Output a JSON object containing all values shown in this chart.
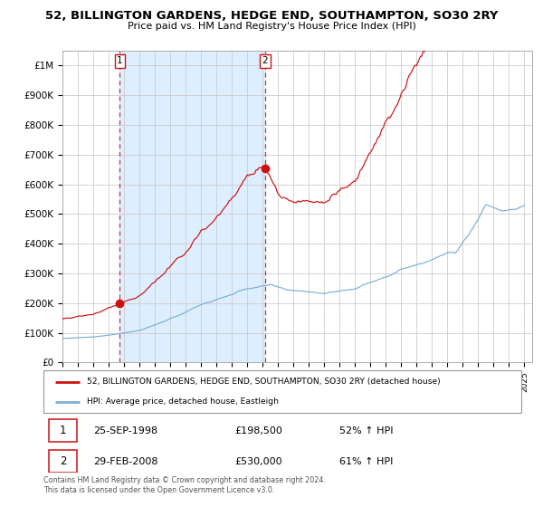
{
  "title": "52, BILLINGTON GARDENS, HEDGE END, SOUTHAMPTON, SO30 2RY",
  "subtitle": "Price paid vs. HM Land Registry's House Price Index (HPI)",
  "x_start_year": 1995,
  "x_end_year": 2025,
  "ylim": [
    0,
    1050000
  ],
  "yticks": [
    0,
    100000,
    200000,
    300000,
    400000,
    500000,
    600000,
    700000,
    800000,
    900000,
    1000000
  ],
  "ytick_labels": [
    "£0",
    "£100K",
    "£200K",
    "£300K",
    "£400K",
    "£500K",
    "£600K",
    "£700K",
    "£800K",
    "£900K",
    "£1M"
  ],
  "hpi_color": "#7bafd4",
  "price_color": "#cc1111",
  "shaded_color": "#ddeeff",
  "grid_color": "#cccccc",
  "purchase1_year": 1998.73,
  "purchase1_price": 198500,
  "purchase2_year": 2008.16,
  "purchase2_price": 530000,
  "legend_entries": [
    {
      "label": "52, BILLINGTON GARDENS, HEDGE END, SOUTHAMPTON, SO30 2RY (detached house)",
      "color": "#cc1111"
    },
    {
      "label": "HPI: Average price, detached house, Eastleigh",
      "color": "#7bafd4"
    }
  ],
  "table_rows": [
    {
      "num": "1",
      "date": "25-SEP-1998",
      "price": "£198,500",
      "change": "52% ↑ HPI"
    },
    {
      "num": "2",
      "date": "29-FEB-2008",
      "price": "£530,000",
      "change": "61% ↑ HPI"
    }
  ],
  "footnote": "Contains HM Land Registry data © Crown copyright and database right 2024.\nThis data is licensed under the Open Government Licence v3.0."
}
